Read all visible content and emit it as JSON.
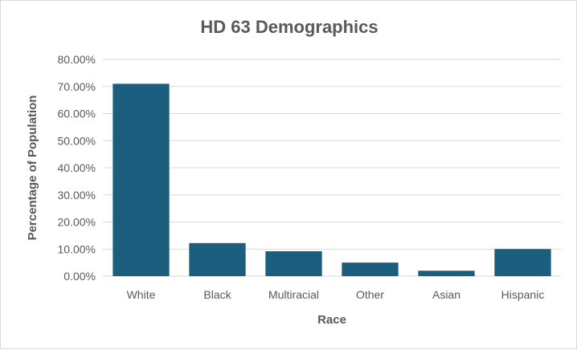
{
  "chart_data": {
    "type": "bar",
    "title": "HD 63 Demographics",
    "xlabel": "Race",
    "ylabel": "Percentage of Population",
    "categories": [
      "White",
      "Black",
      "Multiracial",
      "Other",
      "Asian",
      "Hispanic"
    ],
    "values": [
      71.0,
      12.2,
      9.2,
      5.0,
      2.0,
      10.0
    ],
    "ylim": [
      0,
      80
    ],
    "y_ticks": [
      "0.00%",
      "10.00%",
      "20.00%",
      "30.00%",
      "40.00%",
      "50.00%",
      "60.00%",
      "70.00%",
      "80.00%"
    ],
    "grid": true,
    "legend": "none",
    "bar_color": "#1b5e7e",
    "grid_color": "#d9d9d9",
    "text_color": "#595959"
  }
}
